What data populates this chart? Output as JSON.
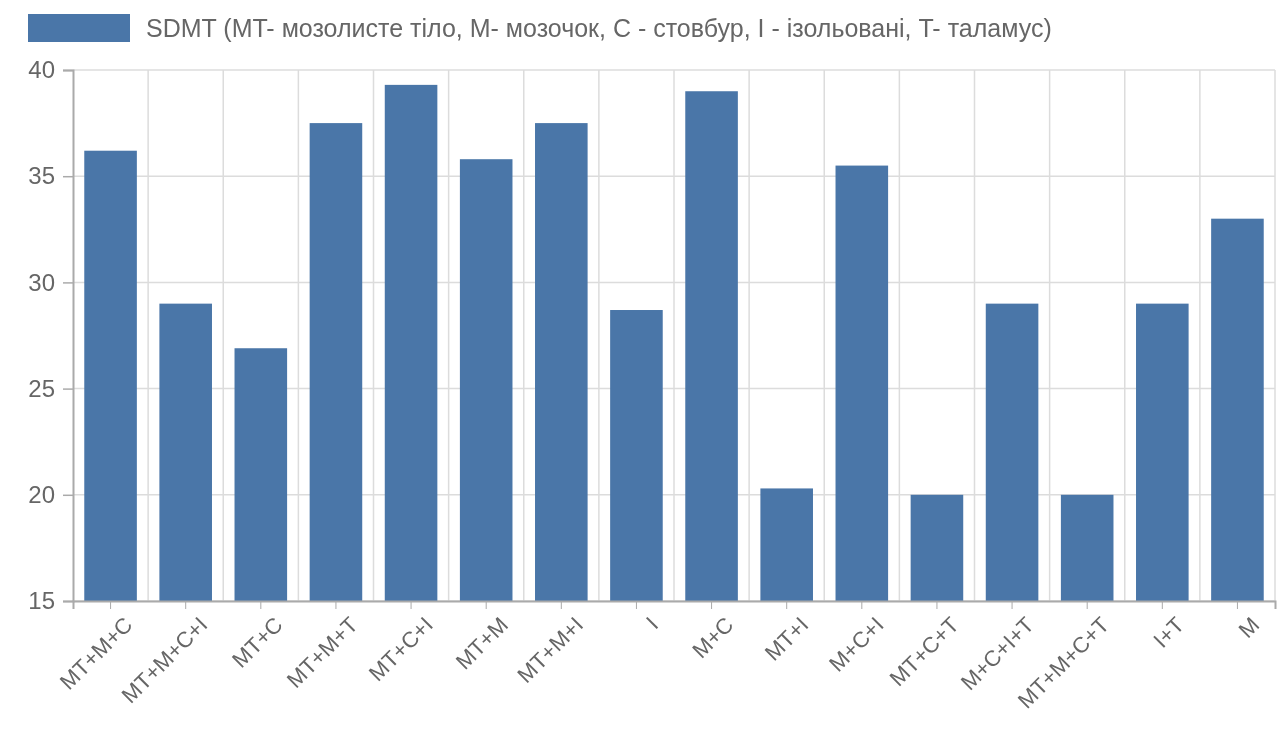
{
  "chart_data": {
    "type": "bar",
    "categories": [
      "MT+M+C",
      "MT+M+C+I",
      "MT+C",
      "MT+M+T",
      "MT+C+I",
      "MT+M",
      "MT+M+I",
      "I",
      "M+C",
      "MT+I",
      "M+C+I",
      "MT+C+T",
      "M+C+I+T",
      "MT+M+C+T",
      "I+T",
      "M"
    ],
    "series": [
      {
        "name": "SDMT (MT- мозолисте тіло, M- мозочок, C - стовбур, I - ізольовані, T- таламус)",
        "color": "#4a76a8",
        "values": [
          36.2,
          29.0,
          26.9,
          37.5,
          39.3,
          35.8,
          37.5,
          28.7,
          39.0,
          20.3,
          35.5,
          20.0,
          29.0,
          20.0,
          29.0,
          33.0
        ]
      }
    ],
    "ylim": [
      15,
      40
    ],
    "yticks": [
      15,
      20,
      25,
      30,
      35,
      40
    ],
    "grid": true,
    "legend": "top"
  }
}
